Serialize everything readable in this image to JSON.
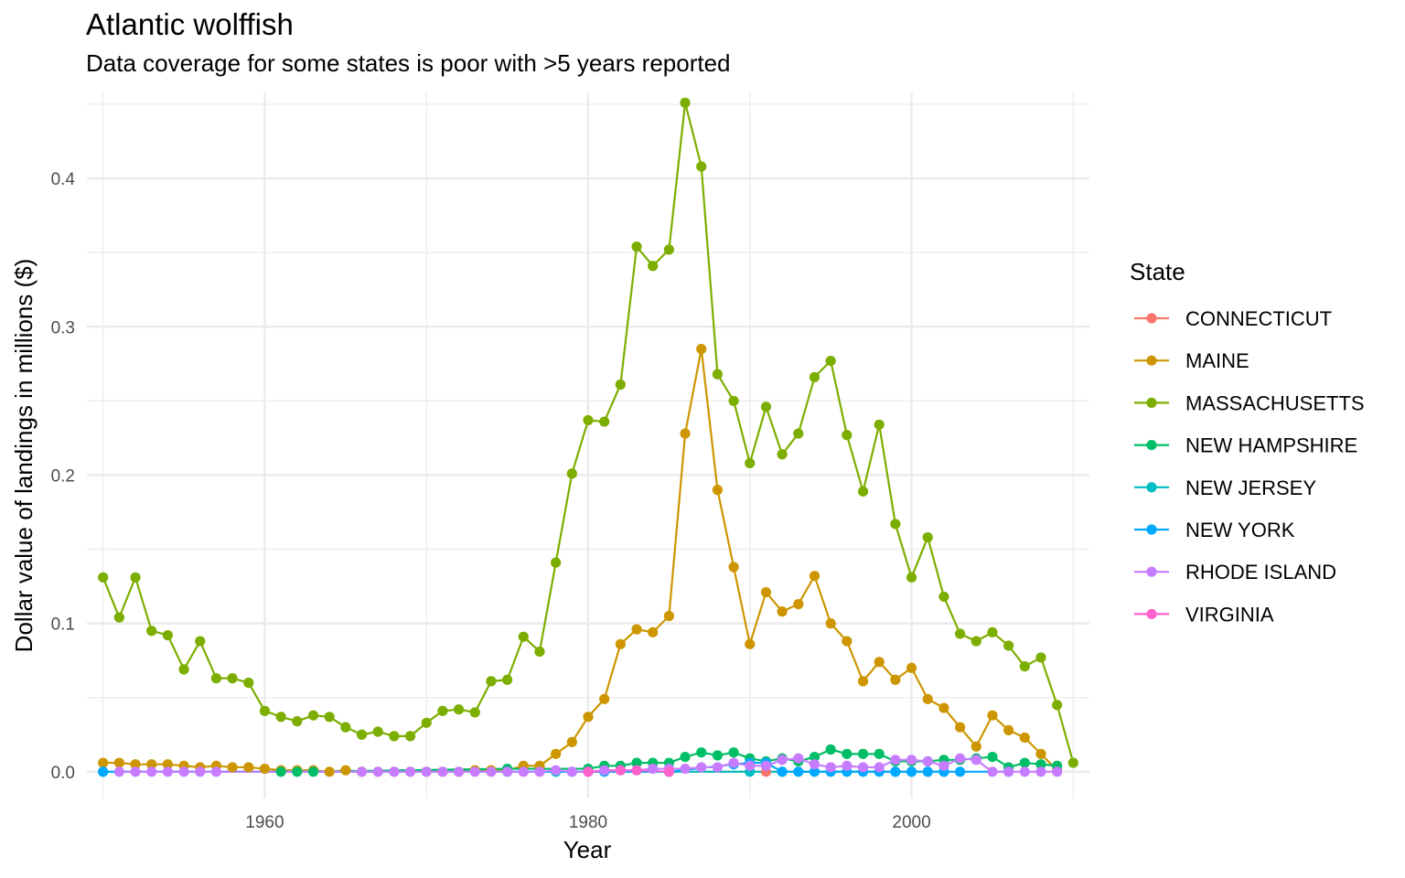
{
  "chart_data": {
    "type": "line",
    "title": "Atlantic wolffish",
    "subtitle": "Data coverage for some states is poor with >5 years reported",
    "xlabel": "Year",
    "ylabel": "Dollar value of landings in millions ($)",
    "xlim": [
      1949,
      2011
    ],
    "ylim": [
      -0.018,
      0.458
    ],
    "x_ticks": [
      1960,
      1980,
      2000
    ],
    "y_ticks": [
      0.0,
      0.1,
      0.2,
      0.3,
      0.4
    ],
    "y_tick_labels": [
      "0.0",
      "0.1",
      "0.2",
      "0.3",
      "0.4"
    ],
    "grid": true,
    "legend": {
      "title": "State",
      "position": "right"
    },
    "series": [
      {
        "name": "CONNECTICUT",
        "color": "#F8766D",
        "points": [
          [
            1985,
            0.0
          ],
          [
            1991,
            0.0
          ],
          [
            2001,
            0.0
          ]
        ]
      },
      {
        "name": "MAINE",
        "color": "#CD9600",
        "points": [
          [
            1950,
            0.006
          ],
          [
            1951,
            0.006
          ],
          [
            1952,
            0.005
          ],
          [
            1953,
            0.005
          ],
          [
            1954,
            0.005
          ],
          [
            1955,
            0.004
          ],
          [
            1956,
            0.003
          ],
          [
            1957,
            0.004
          ],
          [
            1958,
            0.003
          ],
          [
            1959,
            0.003
          ],
          [
            1960,
            0.002
          ],
          [
            1961,
            0.001
          ],
          [
            1962,
            0.001
          ],
          [
            1963,
            0.001
          ],
          [
            1964,
            0.0
          ],
          [
            1965,
            0.001
          ],
          [
            1966,
            0.0
          ],
          [
            1967,
            0.0
          ],
          [
            1968,
            0.0
          ],
          [
            1969,
            0.0
          ],
          [
            1970,
            0.0
          ],
          [
            1971,
            0.0
          ],
          [
            1972,
            0.0
          ],
          [
            1973,
            0.001
          ],
          [
            1974,
            0.001
          ],
          [
            1975,
            0.001
          ],
          [
            1976,
            0.004
          ],
          [
            1977,
            0.004
          ],
          [
            1978,
            0.012
          ],
          [
            1979,
            0.02
          ],
          [
            1980,
            0.037
          ],
          [
            1981,
            0.049
          ],
          [
            1982,
            0.086
          ],
          [
            1983,
            0.096
          ],
          [
            1984,
            0.094
          ],
          [
            1985,
            0.105
          ],
          [
            1986,
            0.228
          ],
          [
            1987,
            0.285
          ],
          [
            1988,
            0.19
          ],
          [
            1989,
            0.138
          ],
          [
            1990,
            0.086
          ],
          [
            1991,
            0.121
          ],
          [
            1992,
            0.108
          ],
          [
            1993,
            0.113
          ],
          [
            1994,
            0.132
          ],
          [
            1995,
            0.1
          ],
          [
            1996,
            0.088
          ],
          [
            1997,
            0.061
          ],
          [
            1998,
            0.074
          ],
          [
            1999,
            0.062
          ],
          [
            2000,
            0.07
          ],
          [
            2001,
            0.049
          ],
          [
            2002,
            0.043
          ],
          [
            2003,
            0.03
          ],
          [
            2004,
            0.017
          ],
          [
            2005,
            0.038
          ],
          [
            2006,
            0.028
          ],
          [
            2007,
            0.023
          ],
          [
            2008,
            0.012
          ],
          [
            2009,
            0.001
          ]
        ]
      },
      {
        "name": "MASSACHUSETTS",
        "color": "#7CAE00",
        "points": [
          [
            1950,
            0.131
          ],
          [
            1951,
            0.104
          ],
          [
            1952,
            0.131
          ],
          [
            1953,
            0.095
          ],
          [
            1954,
            0.092
          ],
          [
            1955,
            0.069
          ],
          [
            1956,
            0.088
          ],
          [
            1957,
            0.063
          ],
          [
            1958,
            0.063
          ],
          [
            1959,
            0.06
          ],
          [
            1960,
            0.041
          ],
          [
            1961,
            0.037
          ],
          [
            1962,
            0.034
          ],
          [
            1963,
            0.038
          ],
          [
            1964,
            0.037
          ],
          [
            1965,
            0.03
          ],
          [
            1966,
            0.025
          ],
          [
            1967,
            0.027
          ],
          [
            1968,
            0.024
          ],
          [
            1969,
            0.024
          ],
          [
            1970,
            0.033
          ],
          [
            1971,
            0.041
          ],
          [
            1972,
            0.042
          ],
          [
            1973,
            0.04
          ],
          [
            1974,
            0.061
          ],
          [
            1975,
            0.062
          ],
          [
            1976,
            0.091
          ],
          [
            1977,
            0.081
          ],
          [
            1978,
            0.141
          ],
          [
            1979,
            0.201
          ],
          [
            1980,
            0.237
          ],
          [
            1981,
            0.236
          ],
          [
            1982,
            0.261
          ],
          [
            1983,
            0.354
          ],
          [
            1984,
            0.341
          ],
          [
            1985,
            0.352
          ],
          [
            1986,
            0.451
          ],
          [
            1987,
            0.408
          ],
          [
            1988,
            0.268
          ],
          [
            1989,
            0.25
          ],
          [
            1990,
            0.208
          ],
          [
            1991,
            0.246
          ],
          [
            1992,
            0.214
          ],
          [
            1993,
            0.228
          ],
          [
            1994,
            0.266
          ],
          [
            1995,
            0.277
          ],
          [
            1996,
            0.227
          ],
          [
            1997,
            0.189
          ],
          [
            1998,
            0.234
          ],
          [
            1999,
            0.167
          ],
          [
            2000,
            0.131
          ],
          [
            2001,
            0.158
          ],
          [
            2002,
            0.118
          ],
          [
            2003,
            0.093
          ],
          [
            2004,
            0.088
          ],
          [
            2005,
            0.094
          ],
          [
            2006,
            0.085
          ],
          [
            2007,
            0.071
          ],
          [
            2008,
            0.077
          ],
          [
            2009,
            0.045
          ],
          [
            2010,
            0.006
          ]
        ]
      },
      {
        "name": "NEW HAMPSHIRE",
        "color": "#00BE67",
        "points": [
          [
            1961,
            0.0
          ],
          [
            1962,
            0.0
          ],
          [
            1963,
            0.0
          ],
          [
            1975,
            0.002
          ],
          [
            1980,
            0.002
          ],
          [
            1981,
            0.004
          ],
          [
            1982,
            0.004
          ],
          [
            1983,
            0.006
          ],
          [
            1984,
            0.006
          ],
          [
            1985,
            0.006
          ],
          [
            1986,
            0.01
          ],
          [
            1987,
            0.013
          ],
          [
            1988,
            0.011
          ],
          [
            1989,
            0.013
          ],
          [
            1990,
            0.009
          ],
          [
            1991,
            0.007
          ],
          [
            1992,
            0.009
          ],
          [
            1993,
            0.007
          ],
          [
            1994,
            0.01
          ],
          [
            1995,
            0.015
          ],
          [
            1996,
            0.012
          ],
          [
            1997,
            0.012
          ],
          [
            1998,
            0.012
          ],
          [
            1999,
            0.007
          ],
          [
            2000,
            0.007
          ],
          [
            2001,
            0.007
          ],
          [
            2002,
            0.008
          ],
          [
            2003,
            0.008
          ],
          [
            2004,
            0.009
          ],
          [
            2005,
            0.01
          ],
          [
            2006,
            0.003
          ],
          [
            2007,
            0.006
          ],
          [
            2008,
            0.005
          ],
          [
            2009,
            0.004
          ]
        ]
      },
      {
        "name": "NEW JERSEY",
        "color": "#00BFC4",
        "points": [
          [
            1950,
            0.0
          ],
          [
            1975,
            0.0
          ],
          [
            1978,
            0.0
          ],
          [
            1979,
            0.0
          ],
          [
            1980,
            0.0
          ],
          [
            1990,
            0.0
          ],
          [
            1992,
            0.0
          ],
          [
            1999,
            0.0
          ],
          [
            2000,
            0.0
          ],
          [
            2002,
            0.0
          ]
        ]
      },
      {
        "name": "NEW YORK",
        "color": "#00A9FF",
        "points": [
          [
            1950,
            0.0
          ],
          [
            1981,
            0.0
          ],
          [
            1985,
            0.0
          ],
          [
            1989,
            0.005
          ],
          [
            1990,
            0.006
          ],
          [
            1991,
            0.006
          ],
          [
            1992,
            0.0
          ],
          [
            1993,
            0.0
          ],
          [
            1994,
            0.0
          ],
          [
            1995,
            0.0
          ],
          [
            1996,
            0.0
          ],
          [
            1997,
            0.0
          ],
          [
            1998,
            0.0
          ],
          [
            1999,
            0.0
          ],
          [
            2000,
            0.0
          ],
          [
            2001,
            0.0
          ],
          [
            2002,
            0.0
          ],
          [
            2003,
            0.0
          ],
          [
            2006,
            0.0
          ]
        ]
      },
      {
        "name": "RHODE ISLAND",
        "color": "#C77CFF",
        "points": [
          [
            1951,
            0.0
          ],
          [
            1952,
            0.0
          ],
          [
            1953,
            0.0
          ],
          [
            1954,
            0.0
          ],
          [
            1955,
            0.0
          ],
          [
            1956,
            0.0
          ],
          [
            1957,
            0.0
          ],
          [
            1966,
            0.0
          ],
          [
            1967,
            0.0
          ],
          [
            1968,
            0.0
          ],
          [
            1969,
            0.0
          ],
          [
            1970,
            0.0
          ],
          [
            1971,
            0.0
          ],
          [
            1972,
            0.0
          ],
          [
            1973,
            0.0
          ],
          [
            1974,
            0.0
          ],
          [
            1975,
            0.0
          ],
          [
            1976,
            0.0
          ],
          [
            1977,
            0.0
          ],
          [
            1978,
            0.001
          ],
          [
            1979,
            0.0
          ],
          [
            1980,
            0.0
          ],
          [
            1981,
            0.001
          ],
          [
            1982,
            0.001
          ],
          [
            1983,
            0.001
          ],
          [
            1984,
            0.002
          ],
          [
            1985,
            0.002
          ],
          [
            1986,
            0.002
          ],
          [
            1987,
            0.003
          ],
          [
            1988,
            0.003
          ],
          [
            1989,
            0.006
          ],
          [
            1990,
            0.004
          ],
          [
            1991,
            0.004
          ],
          [
            1992,
            0.008
          ],
          [
            1993,
            0.009
          ],
          [
            1994,
            0.005
          ],
          [
            1995,
            0.003
          ],
          [
            1996,
            0.004
          ],
          [
            1997,
            0.003
          ],
          [
            1998,
            0.003
          ],
          [
            1999,
            0.008
          ],
          [
            2000,
            0.008
          ],
          [
            2001,
            0.007
          ],
          [
            2002,
            0.004
          ],
          [
            2003,
            0.009
          ],
          [
            2004,
            0.008
          ],
          [
            2005,
            0.0
          ],
          [
            2006,
            0.0
          ],
          [
            2007,
            0.0
          ],
          [
            2008,
            0.0
          ],
          [
            2009,
            0.0
          ]
        ]
      },
      {
        "name": "VIRGINIA",
        "color": "#FF61CC",
        "points": [
          [
            1980,
            0.0
          ],
          [
            1982,
            0.001
          ],
          [
            1983,
            0.001
          ],
          [
            1985,
            0.0
          ]
        ]
      }
    ]
  }
}
